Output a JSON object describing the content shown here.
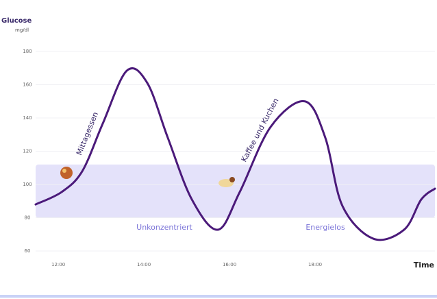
{
  "chart_data": {
    "type": "line",
    "title": "Glucose",
    "y_unit": "mg/dl",
    "x_label": "Time",
    "x": [
      11.47,
      12.08,
      12.56,
      13.04,
      13.6,
      14.08,
      14.56,
      15.12,
      15.73,
      16.24,
      16.96,
      17.76,
      18.24,
      18.64,
      19.36,
      20.08,
      20.48,
      20.8
    ],
    "series": [
      {
        "name": "Glucose",
        "color": "#4b1a7a",
        "values": [
          88,
          95.5,
          108,
          136.7,
          168.4,
          161,
          128,
          91,
          72.8,
          95.5,
          134.6,
          150,
          128,
          87,
          67.4,
          72.8,
          91,
          97.5
        ]
      }
    ],
    "target_range": [
      80,
      112
    ],
    "xlim": [
      11.47,
      20.8
    ],
    "ylim": [
      60,
      180
    ],
    "yticks": [
      60,
      80,
      100,
      120,
      140,
      160,
      180
    ],
    "xticks": [
      {
        "value": 12,
        "label": "12:00"
      },
      {
        "value": 14,
        "label": "14:00"
      },
      {
        "value": 16,
        "label": "16:00"
      },
      {
        "value": 18,
        "label": "18:00"
      }
    ],
    "annotations": [
      "Mittagessen",
      "Kaffee und Kuchen",
      "Unkonzentriert",
      "Energielos"
    ]
  }
}
